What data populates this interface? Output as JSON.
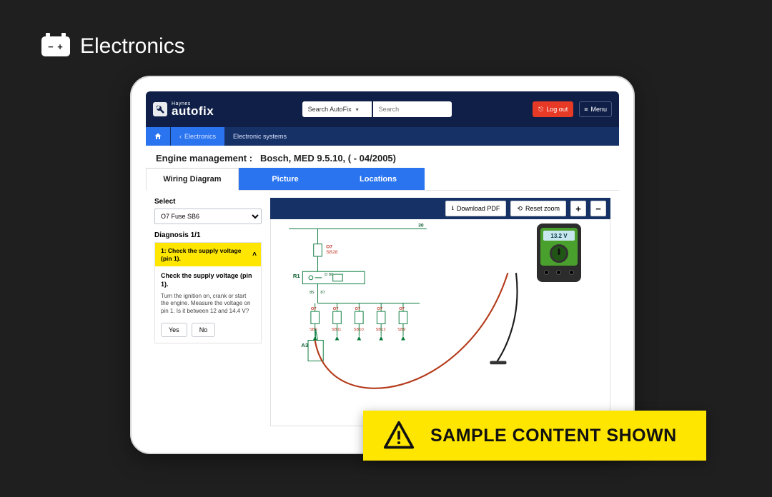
{
  "outer": {
    "section_label": "Electronics"
  },
  "topbar": {
    "brand_top": "Haynes",
    "brand_main": "autofix",
    "search_scope": "Search AutoFix",
    "search_placeholder": "Search",
    "logout": "Log out",
    "menu": "Menu"
  },
  "breadcrumb": {
    "back": "Electronics",
    "current": "Electronic systems"
  },
  "page": {
    "title_prefix": "Engine management :",
    "title_detail": "Bosch, MED 9.5.10, ( - 04/2005)"
  },
  "tabs": {
    "t1": "Wiring Diagram",
    "t2": "Picture",
    "t3": "Locations"
  },
  "sidebar": {
    "select_label": "Select",
    "select_value": "O7  Fuse  SB6",
    "diag_heading": "Diagnosis 1/1",
    "step_label": "1: Check the supply voltage (pin 1).",
    "step_title": "Check the supply voltage (pin 1).",
    "step_body": "Turn the ignition on, crank or start the engine. Measure the voltage on pin 1. Is it between 12 and 14.4 V?",
    "yes": "Yes",
    "no": "No"
  },
  "toolbar": {
    "download": "Download PDF",
    "reset": "Reset zoom",
    "plus": "+",
    "minus": "−"
  },
  "diagram": {
    "top_line_label": "30",
    "r1_label": "R1",
    "r1_pin": "D 86",
    "rail_up_label": "85",
    "rail_low_label": "87",
    "a3_label": "A3",
    "fuse_top": {
      "code": "O7",
      "box": "SB28",
      "color": "#c23a2a"
    },
    "fuses": [
      {
        "code": "O7",
        "box": "SB6",
        "color": "#c23a2a"
      },
      {
        "code": "O7",
        "box": "SB11",
        "color": "#c23a2a"
      },
      {
        "code": "O7",
        "box": "SB10",
        "color": "#c23a2a"
      },
      {
        "code": "O7",
        "box": "SB12",
        "color": "#c23a2a"
      },
      {
        "code": "O7",
        "box": "SB9",
        "color": "#c23a2a"
      }
    ],
    "line_color": "#0a7a3c",
    "text_color": "#0a5a2c",
    "meter_reading": "13.2 V",
    "lead_colors": {
      "red": "#b43a1a",
      "black": "#1a1a1a"
    }
  },
  "sample_banner": "SAMPLE CONTENT SHOWN"
}
